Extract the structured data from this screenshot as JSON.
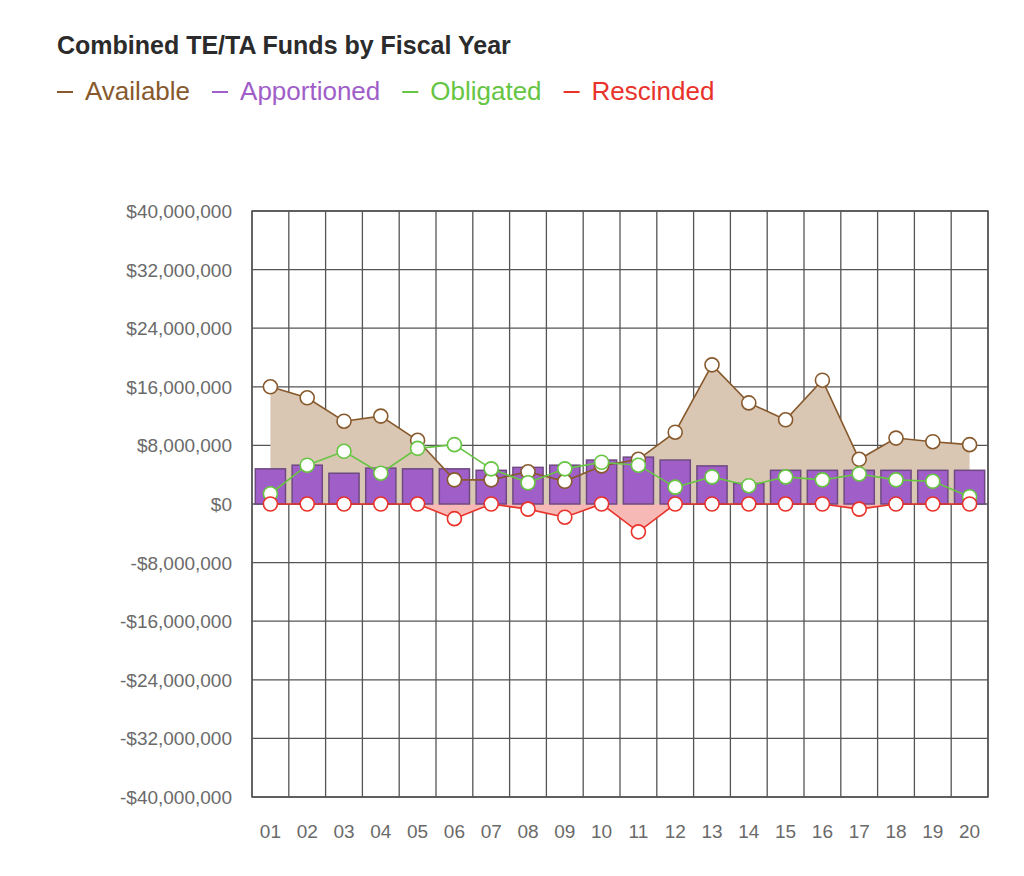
{
  "chart_data": {
    "type": "combo",
    "title": "Combined TE/TA Funds by Fiscal Year",
    "legend": "top-left",
    "grid": true,
    "categories": [
      "01",
      "02",
      "03",
      "04",
      "05",
      "06",
      "07",
      "08",
      "09",
      "10",
      "11",
      "12",
      "13",
      "14",
      "15",
      "16",
      "17",
      "18",
      "19",
      "20"
    ],
    "ylim": [
      -40000000,
      40000000
    ],
    "yticks": [
      {
        "value": -40000000,
        "label": "-$40,000,000"
      },
      {
        "value": -32000000,
        "label": "-$32,000,000"
      },
      {
        "value": -24000000,
        "label": "-$24,000,000"
      },
      {
        "value": -16000000,
        "label": "-$16,000,000"
      },
      {
        "value": -8000000,
        "label": "-$8,000,000"
      },
      {
        "value": 0,
        "label": "$0"
      },
      {
        "value": 8000000,
        "label": "$8,000,000"
      },
      {
        "value": 16000000,
        "label": "$16,000,000"
      },
      {
        "value": 24000000,
        "label": "$24,000,000"
      },
      {
        "value": 32000000,
        "label": "$32,000,000"
      },
      {
        "value": 40000000,
        "label": "$40,000,000"
      }
    ],
    "series": [
      {
        "name": "Available",
        "type": "area",
        "color": "#87592c",
        "marker": "circle",
        "values": [
          16000000,
          14500000,
          11300000,
          12000000,
          8700000,
          3300000,
          3300000,
          4400000,
          3100000,
          5200000,
          6100000,
          9800000,
          19000000,
          13800000,
          11500000,
          16900000,
          6100000,
          9000000,
          8500000,
          8100000
        ]
      },
      {
        "name": "Apportioned",
        "type": "bar",
        "color": "#a05ec9",
        "values": [
          4800000,
          5300000,
          4200000,
          4900000,
          4800000,
          4800000,
          4600000,
          5000000,
          5300000,
          6000000,
          6400000,
          6000000,
          5200000,
          2800000,
          4600000,
          4600000,
          4600000,
          4600000,
          4600000,
          4600000
        ]
      },
      {
        "name": "Obligated",
        "type": "line",
        "color": "#66c542",
        "marker": "circle",
        "values": [
          1400000,
          5300000,
          7200000,
          4200000,
          7600000,
          8100000,
          4800000,
          2900000,
          4800000,
          5700000,
          5300000,
          2300000,
          3700000,
          2500000,
          3700000,
          3300000,
          4100000,
          3300000,
          3100000,
          1000000
        ]
      },
      {
        "name": "Rescinded",
        "type": "area",
        "color": "#e8322a",
        "marker": "circle",
        "values": [
          0,
          0,
          0,
          0,
          0,
          -2000000,
          0,
          -700000,
          -1800000,
          0,
          -3800000,
          0,
          0,
          0,
          0,
          0,
          -700000,
          0,
          0,
          0
        ]
      }
    ]
  }
}
